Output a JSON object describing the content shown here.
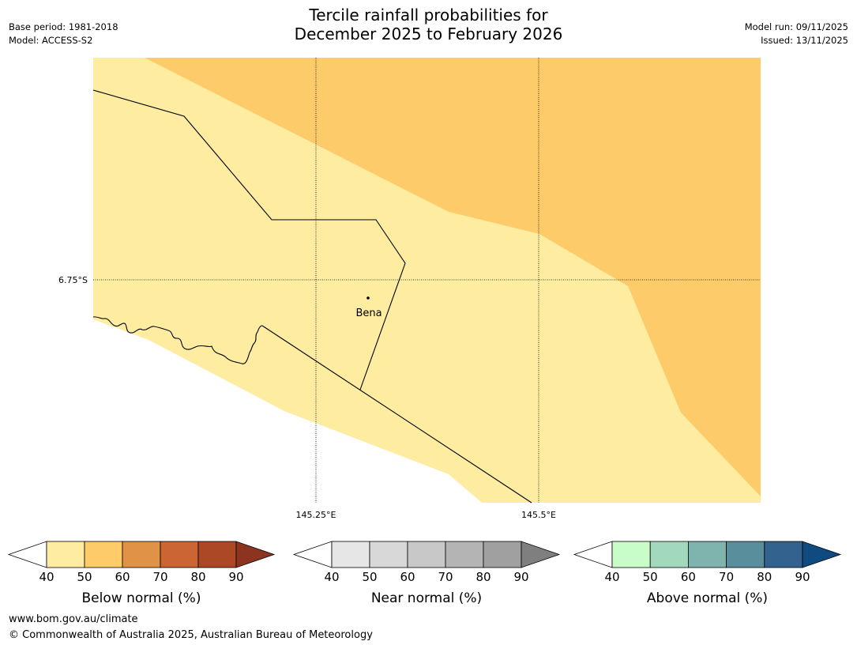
{
  "title": {
    "line1": "Tercile rainfall probabilities for",
    "line2": "December 2025 to February 2026"
  },
  "meta_left": {
    "base_period": "Base period: 1981-2018",
    "model": "Model: ACCESS-S2"
  },
  "meta_right": {
    "model_run": "Model run: 09/11/2025",
    "issued": "Issued: 13/11/2025"
  },
  "map": {
    "lat_label": "6.75°S",
    "lon_labels": [
      "145.25°E",
      "145.5°E"
    ],
    "place_name": "Bena",
    "region_colors": {
      "below_40_50": "#feeca1",
      "below_50_60": "#fecb6a",
      "no_data": "#ffffff"
    }
  },
  "legends": [
    {
      "name": "below",
      "caption": "Below normal (%)",
      "ticks": [
        "40",
        "50",
        "60",
        "70",
        "80",
        "90"
      ],
      "under_color": "#ffffff",
      "colors": [
        "#feeca1",
        "#fecb6a",
        "#e09247",
        "#cc6534",
        "#ad4827"
      ],
      "over_color": "#8c3420"
    },
    {
      "name": "near",
      "caption": "Near normal (%)",
      "ticks": [
        "40",
        "50",
        "60",
        "70",
        "80",
        "90"
      ],
      "under_color": "#ffffff",
      "colors": [
        "#e6e6e6",
        "#d8d8d8",
        "#c8c8c8",
        "#b4b4b4",
        "#a0a0a0"
      ],
      "over_color": "#7f7f7f"
    },
    {
      "name": "above",
      "caption": "Above normal (%)",
      "ticks": [
        "40",
        "50",
        "60",
        "70",
        "80",
        "90"
      ],
      "under_color": "#ffffff",
      "colors": [
        "#c8fcc8",
        "#a2d9bc",
        "#7fb4ae",
        "#598f9c",
        "#33628f"
      ],
      "over_color": "#0f4a80"
    }
  ],
  "footer": {
    "url": "www.bom.gov.au/climate",
    "copyright": "© Commonwealth of Australia 2025, Australian Bureau of Meteorology"
  }
}
